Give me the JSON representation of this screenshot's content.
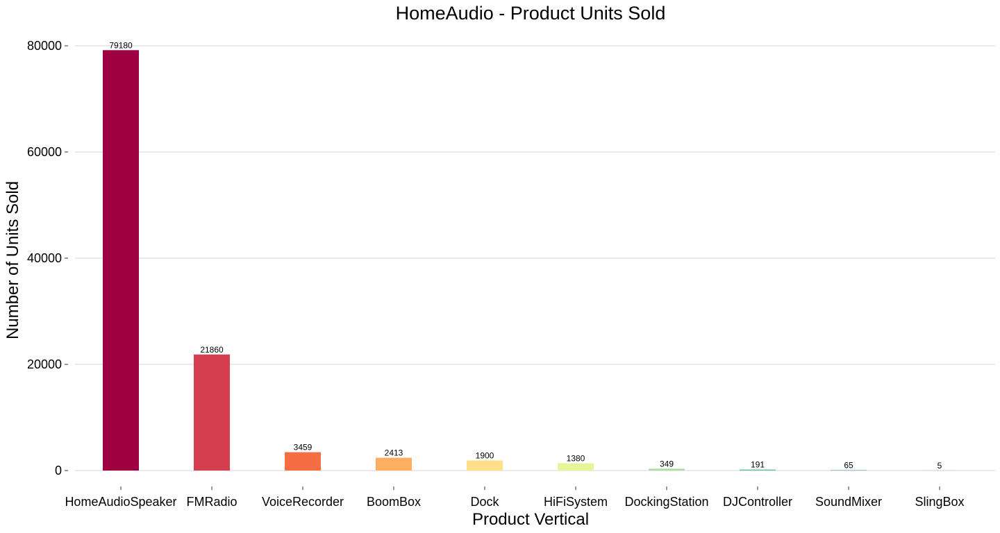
{
  "chart_data": {
    "type": "bar",
    "title": "HomeAudio - Product Units Sold",
    "xlabel": "Product Vertical",
    "ylabel": "Number of Units Sold",
    "categories": [
      "HomeAudioSpeaker",
      "FMRadio",
      "VoiceRecorder",
      "BoomBox",
      "Dock",
      "HiFiSystem",
      "DockingStation",
      "DJController",
      "SoundMixer",
      "SlingBox"
    ],
    "values": [
      79180,
      21860,
      3459,
      2413,
      1900,
      1380,
      349,
      191,
      65,
      5
    ],
    "colors": [
      "#9e0142",
      "#d53e4f",
      "#f46d43",
      "#fdae61",
      "#fee08b",
      "#e6f598",
      "#abdda4",
      "#66c2a5",
      "#3288bd",
      "#5e4fa2"
    ],
    "yticks": [
      0,
      20000,
      40000,
      60000,
      80000
    ],
    "ylim": [
      0,
      80000
    ],
    "grid": true,
    "legend": "none"
  }
}
